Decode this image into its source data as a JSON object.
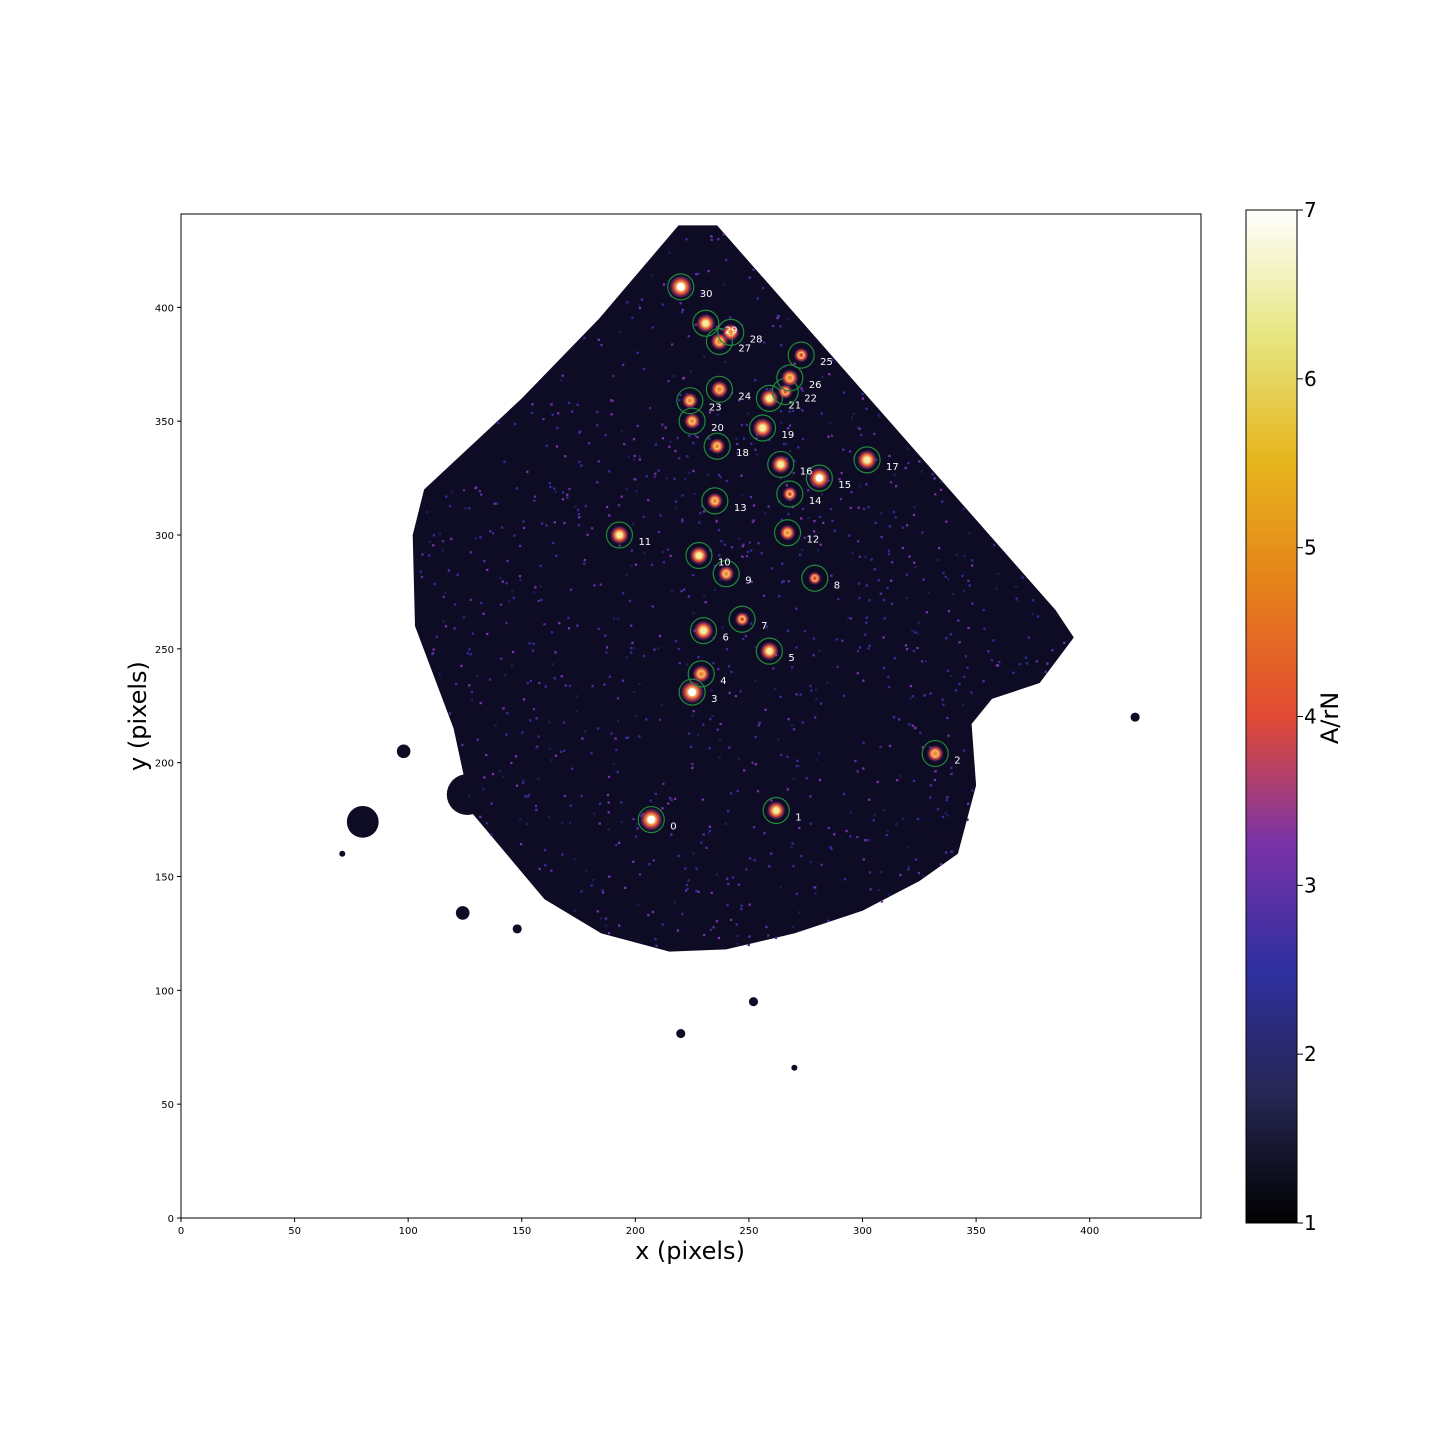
{
  "chart_data": {
    "type": "heatmap",
    "title": "",
    "xlabel": "x (pixels)",
    "ylabel": "y (pixels)",
    "xlim": [
      0,
      449
    ],
    "ylim": [
      0,
      441
    ],
    "x_ticks": [
      0,
      50,
      100,
      150,
      200,
      250,
      300,
      350,
      400
    ],
    "y_ticks": [
      0,
      50,
      100,
      150,
      200,
      250,
      300,
      350,
      400
    ],
    "colorbar": {
      "label": "A/rN",
      "range": [
        1,
        7
      ],
      "ticks": [
        1,
        2,
        3,
        4,
        5,
        6,
        7
      ],
      "colormap": "CMRmap"
    },
    "background": {
      "color": "#0e0b25",
      "region_outline": [
        [
          219,
          436
        ],
        [
          236,
          436
        ],
        [
          385,
          267
        ],
        [
          393,
          255
        ],
        [
          378,
          235
        ],
        [
          357,
          228
        ],
        [
          348,
          217
        ],
        [
          350,
          190
        ],
        [
          342,
          160
        ],
        [
          325,
          148
        ],
        [
          300,
          135
        ],
        [
          270,
          125
        ],
        [
          240,
          118
        ],
        [
          215,
          117
        ],
        [
          185,
          125
        ],
        [
          160,
          140
        ],
        [
          128,
          178
        ],
        [
          120,
          215
        ],
        [
          103,
          260
        ],
        [
          102,
          300
        ],
        [
          107,
          320
        ],
        [
          150,
          360
        ],
        [
          184,
          395
        ]
      ],
      "blobs": [
        {
          "x": 80,
          "y": 174,
          "r": 7
        },
        {
          "x": 98,
          "y": 205,
          "r": 3
        },
        {
          "x": 124,
          "y": 134,
          "r": 3
        },
        {
          "x": 148,
          "y": 127,
          "r": 2
        },
        {
          "x": 126,
          "y": 186,
          "r": 9
        },
        {
          "x": 336,
          "y": 175,
          "r": 8
        },
        {
          "x": 420,
          "y": 220,
          "r": 2
        },
        {
          "x": 252,
          "y": 95,
          "r": 2
        },
        {
          "x": 220,
          "y": 81,
          "r": 2
        },
        {
          "x": 71,
          "y": 160,
          "r": 1
        },
        {
          "x": 270,
          "y": 66,
          "r": 1
        }
      ]
    },
    "sources": [
      {
        "id": "0",
        "x": 207,
        "y": 175,
        "peak": 7
      },
      {
        "id": "1",
        "x": 262,
        "y": 179,
        "peak": 5.5
      },
      {
        "id": "2",
        "x": 332,
        "y": 204,
        "peak": 4.8
      },
      {
        "id": "3",
        "x": 225,
        "y": 231,
        "peak": 7
      },
      {
        "id": "4",
        "x": 229,
        "y": 239,
        "peak": 5
      },
      {
        "id": "5",
        "x": 259,
        "y": 249,
        "peak": 5.5
      },
      {
        "id": "6",
        "x": 230,
        "y": 258,
        "peak": 6
      },
      {
        "id": "7",
        "x": 247,
        "y": 263,
        "peak": 4
      },
      {
        "id": "8",
        "x": 279,
        "y": 281,
        "peak": 3.5
      },
      {
        "id": "9",
        "x": 240,
        "y": 283,
        "peak": 4.5
      },
      {
        "id": "10",
        "x": 228,
        "y": 291,
        "peak": 5.5
      },
      {
        "id": "11",
        "x": 193,
        "y": 300,
        "peak": 5.5
      },
      {
        "id": "12",
        "x": 267,
        "y": 301,
        "peak": 4.5
      },
      {
        "id": "13",
        "x": 235,
        "y": 315,
        "peak": 4.5
      },
      {
        "id": "14",
        "x": 268,
        "y": 318,
        "peak": 4
      },
      {
        "id": "15",
        "x": 281,
        "y": 325,
        "peak": 6.5
      },
      {
        "id": "16",
        "x": 264,
        "y": 331,
        "peak": 5.5
      },
      {
        "id": "17",
        "x": 302,
        "y": 333,
        "peak": 6
      },
      {
        "id": "18",
        "x": 236,
        "y": 339,
        "peak": 4.5
      },
      {
        "id": "19",
        "x": 256,
        "y": 347,
        "peak": 6
      },
      {
        "id": "20",
        "x": 225,
        "y": 350,
        "peak": 4.5
      },
      {
        "id": "21",
        "x": 259,
        "y": 360,
        "peak": 5.5
      },
      {
        "id": "22",
        "x": 266,
        "y": 363,
        "peak": 4
      },
      {
        "id": "23",
        "x": 224,
        "y": 359,
        "peak": 4.5
      },
      {
        "id": "24",
        "x": 237,
        "y": 364,
        "peak": 5
      },
      {
        "id": "25",
        "x": 273,
        "y": 379,
        "peak": 4
      },
      {
        "id": "26",
        "x": 268,
        "y": 369,
        "peak": 5
      },
      {
        "id": "27",
        "x": 237,
        "y": 385,
        "peak": 5
      },
      {
        "id": "28",
        "x": 242,
        "y": 389,
        "peak": 5
      },
      {
        "id": "29",
        "x": 231,
        "y": 393,
        "peak": 5.5
      },
      {
        "id": "30",
        "x": 220,
        "y": 409,
        "peak": 7
      }
    ]
  }
}
